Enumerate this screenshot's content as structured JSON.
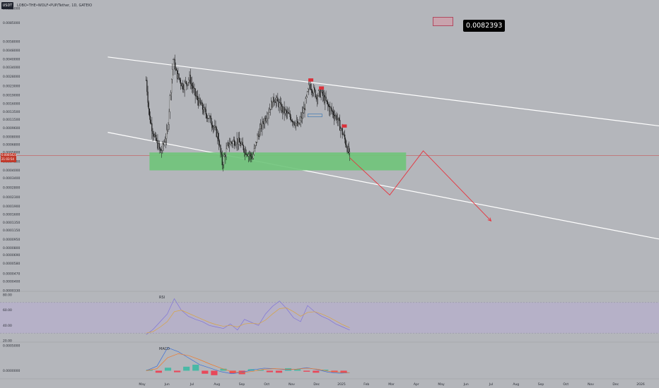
{
  "header": {
    "symbol_badge": "USDT",
    "title": "LOBO•THE•WOLF•PUP/Tether, 1D, GATEIO"
  },
  "price_callout": "0.0082393",
  "last_price": {
    "value": "0.0005421",
    "countdown": "21:03:54"
  },
  "colors": {
    "background": "#b4b6bb",
    "channel": "#ffffff",
    "demand_zone": "#6fc47a",
    "projection": "#e8323c",
    "candle": "#111111",
    "rsi_band": "#b6b0cc",
    "rsi_line": "#7f73d8",
    "rsi_ma": "#d9a440",
    "macd_line": "#3b6fd8",
    "signal_line": "#f07a2b",
    "hist_pos": "#49b9a6",
    "hist_neg": "#e8485a"
  },
  "chart_data": [
    {
      "type": "line",
      "title": "",
      "scale": "log",
      "x_ticks": [
        "May",
        "Jun",
        "Jul",
        "Aug",
        "Sep",
        "Oct",
        "Nov",
        "Dec",
        "2025",
        "Feb",
        "Mar",
        "Apr",
        "May",
        "Jun",
        "Jul",
        "Aug",
        "Sep",
        "Oct",
        "Nov",
        "Dec",
        "2026"
      ],
      "y_ticks": [
        "0.0115000",
        "0.0085000",
        "0.0058000",
        "0.0048000",
        "0.0040000",
        "0.0034000",
        "0.0028000",
        "0.0023000",
        "0.0019000",
        "0.0016000",
        "0.0013500",
        "0.0011500",
        "0.0009600",
        "0.0008000",
        "0.0006800",
        "0.0005800",
        "0.0004800",
        "0.0004000",
        "0.0003400",
        "0.0002800",
        "0.0002300",
        "0.0001900",
        "0.0001600",
        "0.0001350",
        "0.0001150",
        "0.0000950",
        "0.0000800",
        "0.0000690",
        "0.0000580",
        "0.0000470",
        "0.0000400",
        "0.0000330"
      ],
      "price_series": [
        {
          "date": "2024-05-06",
          "close": 0.0026
        },
        {
          "date": "2024-05-10",
          "close": 0.0012
        },
        {
          "date": "2024-05-16",
          "close": 0.0008
        },
        {
          "date": "2024-05-24",
          "close": 0.00058
        },
        {
          "date": "2024-06-01",
          "close": 0.0009
        },
        {
          "date": "2024-06-04",
          "close": 0.0018
        },
        {
          "date": "2024-06-08",
          "close": 0.004
        },
        {
          "date": "2024-06-12",
          "close": 0.003
        },
        {
          "date": "2024-06-20",
          "close": 0.0023
        },
        {
          "date": "2024-06-28",
          "close": 0.0027
        },
        {
          "date": "2024-07-05",
          "close": 0.0019
        },
        {
          "date": "2024-07-15",
          "close": 0.0014
        },
        {
          "date": "2024-07-25",
          "close": 0.0011
        },
        {
          "date": "2024-08-02",
          "close": 0.0008
        },
        {
          "date": "2024-08-07",
          "close": 0.00046
        },
        {
          "date": "2024-08-15",
          "close": 0.0007
        },
        {
          "date": "2024-08-25",
          "close": 0.00075
        },
        {
          "date": "2024-09-05",
          "close": 0.0006
        },
        {
          "date": "2024-09-13",
          "close": 0.00052
        },
        {
          "date": "2024-09-20",
          "close": 0.00085
        },
        {
          "date": "2024-10-01",
          "close": 0.0013
        },
        {
          "date": "2024-10-10",
          "close": 0.0018
        },
        {
          "date": "2024-10-20",
          "close": 0.0014
        },
        {
          "date": "2024-10-30",
          "close": 0.0012
        },
        {
          "date": "2024-11-08",
          "close": 0.001
        },
        {
          "date": "2024-11-15",
          "close": 0.0014
        },
        {
          "date": "2024-11-22",
          "close": 0.0024
        },
        {
          "date": "2024-11-30",
          "close": 0.0019
        },
        {
          "date": "2024-12-06",
          "close": 0.002
        },
        {
          "date": "2024-12-15",
          "close": 0.0015
        },
        {
          "date": "2024-12-25",
          "close": 0.0012
        },
        {
          "date": "2025-01-03",
          "close": 0.0008
        },
        {
          "date": "2025-01-10",
          "close": 0.0005421
        }
      ],
      "demand_zone": {
        "start": "2024-05-10",
        "end": "2025-03-20",
        "top": 0.00058,
        "bottom": 0.0004
      },
      "channel_upper": [
        {
          "date": "2024-03-20",
          "price": 0.0042
        },
        {
          "date": "2026-02-20",
          "price": 0.00095
        }
      ],
      "channel_lower": [
        {
          "date": "2024-03-20",
          "price": 0.00088
        },
        {
          "date": "2026-02-20",
          "price": 8.8e-05
        }
      ],
      "projection": [
        {
          "date": "2025-01-10",
          "price": 0.00052
        },
        {
          "date": "2025-02-28",
          "price": 0.00024
        },
        {
          "date": "2025-04-10",
          "price": 0.0006
        },
        {
          "date": "2025-07-02",
          "price": 0.00014
        }
      ],
      "last_price_line": 0.0005421
    },
    {
      "type": "line",
      "title": "RSI",
      "y_ticks": [
        "80.00",
        "60.00",
        "40.00",
        "20.00"
      ],
      "ylim": [
        20,
        80
      ],
      "band": [
        30,
        70
      ],
      "series": [
        {
          "values": [
            28,
            35,
            45,
            55,
            75,
            60,
            52,
            48,
            45,
            40,
            38,
            36,
            42,
            34,
            48,
            44,
            40,
            55,
            65,
            72,
            62,
            50,
            45,
            66,
            58,
            52,
            48,
            42,
            38,
            34
          ]
        },
        {
          "values": [
            30,
            32,
            38,
            45,
            58,
            60,
            56,
            52,
            48,
            44,
            41,
            39,
            40,
            38,
            42,
            43,
            42,
            47,
            55,
            62,
            63,
            58,
            52,
            57,
            58,
            55,
            51,
            46,
            41,
            37
          ]
        }
      ]
    },
    {
      "type": "bar",
      "title": "MACD",
      "y_ticks": [
        "0.0005000",
        "0.0000000"
      ],
      "series": [
        {
          "values": [
            0,
            9e-05,
            0.00046,
            0.00038,
            0.00025,
            0.00012,
            5e-05,
            -2e-05,
            -6e-05,
            -3e-05,
            2e-05,
            5e-05,
            4e-05,
            2e-05,
            3e-05,
            6e-05,
            2e-05,
            -3e-05,
            -5e-05,
            -4e-05
          ]
        },
        {
          "values": [
            0,
            4e-05,
            0.00026,
            0.00034,
            0.0003,
            0.00022,
            0.00013,
            5e-05,
            -2e-05,
            -4e-05,
            -1e-05,
            3e-05,
            4e-05,
            3e-05,
            3e-05,
            5e-05,
            3e-05,
            -1e-05,
            -3e-05,
            -4e-05
          ]
        }
      ],
      "histogram": [
        2e-05,
        -4e-05,
        6e-05,
        -3e-05,
        8e-05,
        0.00012,
        -6e-05,
        -9e-05,
        4e-05,
        -5e-05,
        -7e-05,
        3e-05,
        2e-05,
        -3e-05,
        -4e-05,
        5e-05,
        3e-05,
        -2e-05,
        -4e-05,
        2e-05,
        -3e-05,
        -5e-05
      ]
    }
  ]
}
